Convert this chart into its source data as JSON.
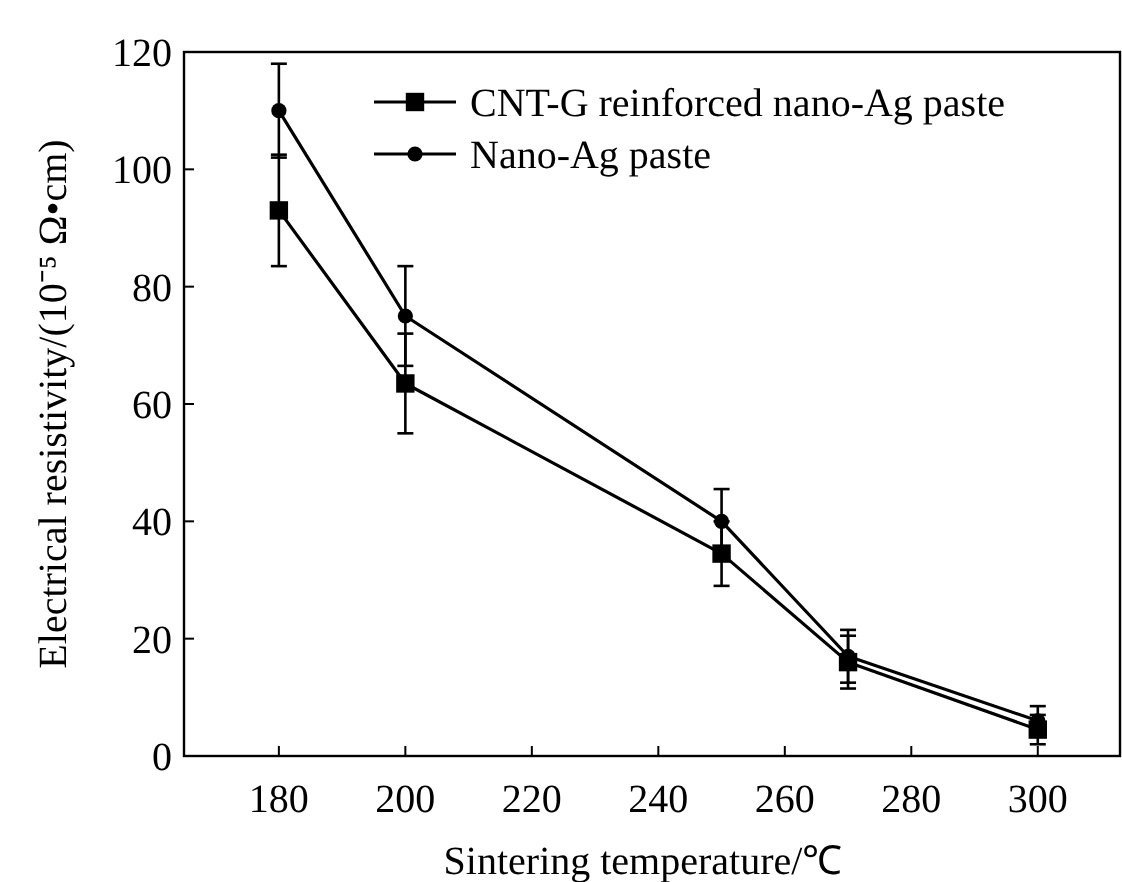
{
  "chart_data": {
    "type": "line",
    "xlabel": "Sintering temperature/℃",
    "ylabel": "Electrical resistivity/(10⁻⁵ Ω•cm)",
    "x": [
      180,
      200,
      250,
      270,
      300
    ],
    "xlim": [
      165,
      313
    ],
    "xticks": [
      180,
      200,
      220,
      240,
      260,
      280,
      300
    ],
    "ylim": [
      0,
      120
    ],
    "yticks": [
      0,
      20,
      40,
      60,
      80,
      100,
      120
    ],
    "legend": "top right",
    "grid": false,
    "line_style": "solid",
    "series": [
      {
        "name": "CNT-G reinforced nano-Ag paste",
        "color": "#000000",
        "marker": "square",
        "values": [
          93,
          63.5,
          34.5,
          16,
          4.5
        ],
        "errors": [
          9.5,
          8.5,
          5.5,
          4.5,
          2.5
        ]
      },
      {
        "name": "Nano-Ag paste",
        "color": "#000000",
        "marker": "circle",
        "values": [
          110,
          75,
          40,
          17,
          6
        ],
        "errors": [
          8,
          8.5,
          5.5,
          4.5,
          2.5
        ]
      }
    ]
  }
}
